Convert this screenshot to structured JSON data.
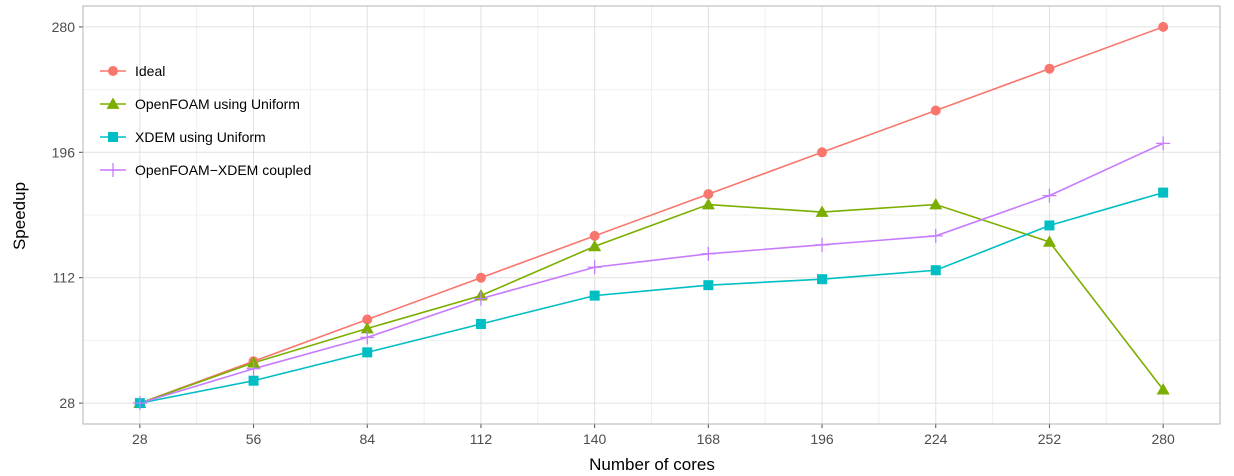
{
  "chart_data": {
    "type": "line",
    "title": "",
    "xlabel": "Number of cores",
    "ylabel": "Speedup",
    "x": [
      28,
      56,
      84,
      112,
      140,
      168,
      196,
      224,
      252,
      280
    ],
    "x_ticks": [
      "28",
      "56",
      "84",
      "112",
      "140",
      "168",
      "196",
      "224",
      "252",
      "280"
    ],
    "y_ticks": [
      28,
      112,
      196,
      280
    ],
    "xlim": [
      14,
      294
    ],
    "ylim": [
      14,
      294
    ],
    "grid": true,
    "legend_position": "top-left",
    "series": [
      {
        "name": "Ideal",
        "color": "#F8766D",
        "marker": "circle",
        "values": [
          28,
          56,
          84,
          112,
          140,
          168,
          196,
          224,
          252,
          280
        ]
      },
      {
        "name": "OpenFOAM using Uniform",
        "color": "#7CAE00",
        "marker": "triangle",
        "values": [
          28,
          55,
          78,
          100,
          133,
          161,
          156,
          161,
          136,
          37
        ]
      },
      {
        "name": "XDEM using Uniform",
        "color": "#00BFC4",
        "marker": "square",
        "values": [
          28,
          43,
          62,
          81,
          100,
          107,
          111,
          117,
          147,
          169
        ]
      },
      {
        "name": "OpenFOAM−XDEM coupled",
        "color": "#C77CFF",
        "marker": "plus",
        "values": [
          28,
          51,
          72,
          98,
          119,
          128,
          134,
          140,
          167,
          202
        ]
      }
    ]
  }
}
